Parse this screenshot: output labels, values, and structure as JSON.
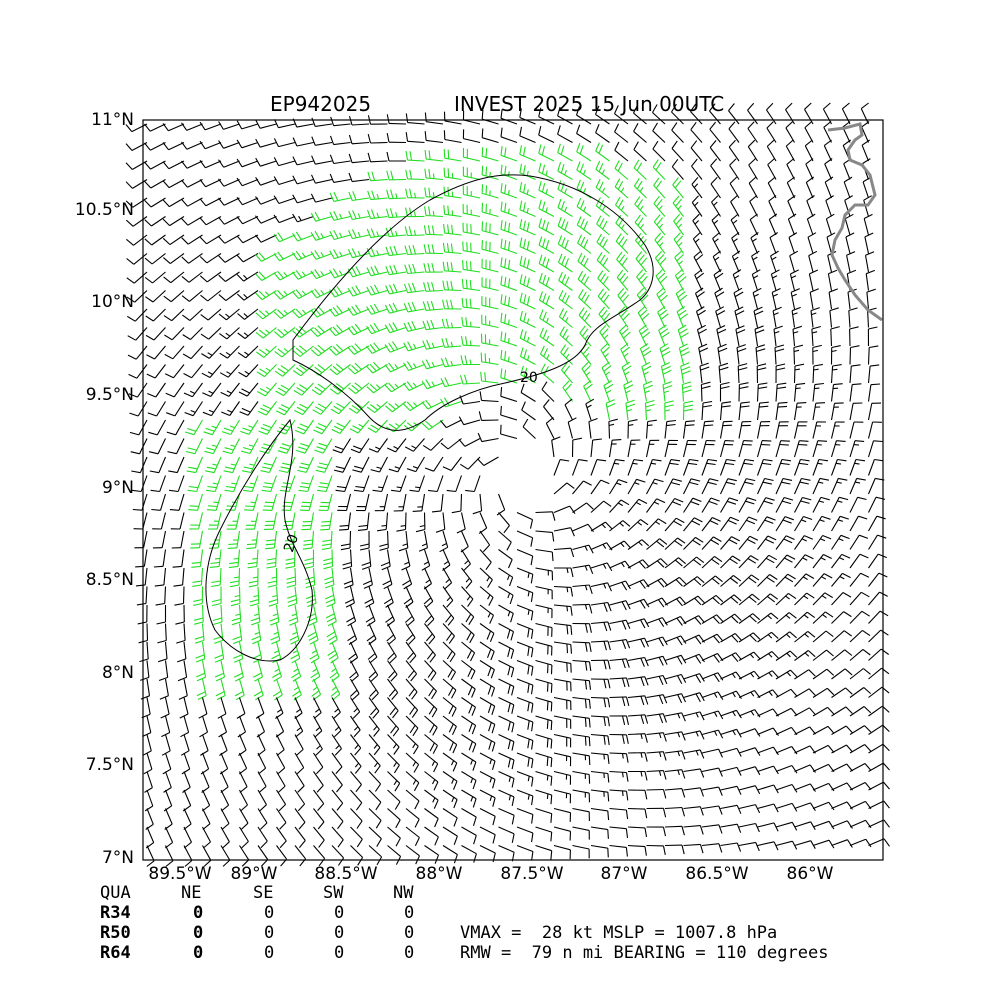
{
  "header": {
    "storm_id": "EP942025",
    "storm_label": "INVEST 2025 15 Jun 00UTC"
  },
  "axes": {
    "lat_ticks": [
      "11°N",
      "10.5°N",
      "10°N",
      "9.5°N",
      "9°N",
      "8.5°N",
      "8°N",
      "7.5°N",
      "7°N"
    ],
    "lon_ticks": [
      "89.5°W",
      "89°W",
      "88.5°W",
      "88°W",
      "87.5°W",
      "87°W",
      "86.5°W",
      "86°W"
    ],
    "lat_range": [
      7.0,
      11.0
    ],
    "lon_range": [
      -89.6,
      -85.6
    ]
  },
  "map": {
    "center": {
      "lat": 9.05,
      "lon": -87.55
    },
    "contour_label": "20",
    "contour_label_2": "20",
    "strong_wind_color": "#22dd22",
    "barb_color": "#000000",
    "coastline_color": "#888888"
  },
  "radii_table": {
    "headers": [
      "QUA",
      "NE",
      "SE",
      "SW",
      "NW"
    ],
    "rows": [
      {
        "label": "R34",
        "values": [
          "0",
          "0",
          "0",
          "0"
        ]
      },
      {
        "label": "R50",
        "values": [
          "0",
          "0",
          "0",
          "0"
        ]
      },
      {
        "label": "R64",
        "values": [
          "0",
          "0",
          "0",
          "0"
        ]
      }
    ]
  },
  "summary": {
    "line1": "VMAX =  28 kt MSLP = 1007.8 hPa",
    "line2": "RMW =  79 n mi BEARING = 110 degrees"
  }
}
